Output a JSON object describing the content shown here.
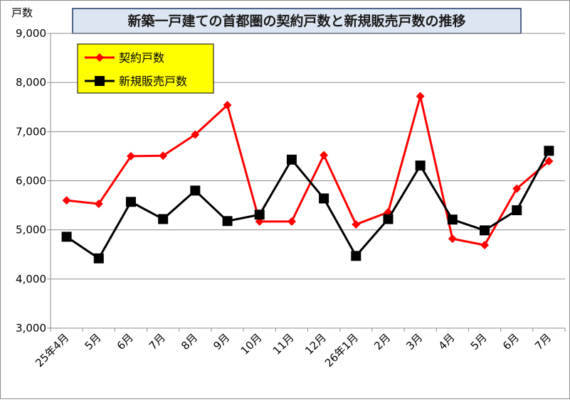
{
  "chart_data": {
    "type": "line",
    "title": "新築一戸建ての首都圏の契約戸数と新規販売戸数の推移",
    "ylabel": "戸数",
    "xlabel": "",
    "ylim": [
      3000,
      9000
    ],
    "yticks": [
      3000,
      4000,
      5000,
      6000,
      7000,
      8000,
      9000
    ],
    "ytick_labels": [
      "3,000",
      "4,000",
      "5,000",
      "6,000",
      "7,000",
      "8,000",
      "9,000"
    ],
    "categories": [
      "25年4月",
      "5月",
      "6月",
      "7月",
      "8月",
      "9月",
      "10月",
      "11月",
      "12月",
      "26年1月",
      "2月",
      "3月",
      "4月",
      "5月",
      "6月",
      "7月"
    ],
    "grid": "horizontal",
    "legend_position": "top-left",
    "series": [
      {
        "name": "契約戸数",
        "color": "#ff0000",
        "marker": "diamond",
        "values": [
          5600,
          5530,
          6500,
          6510,
          6940,
          7540,
          5170,
          5170,
          6520,
          5110,
          5360,
          7720,
          4820,
          4690,
          5840,
          6400
        ]
      },
      {
        "name": "新規販売戸数",
        "color": "#000000",
        "marker": "square",
        "values": [
          4860,
          4420,
          5570,
          5220,
          5800,
          5180,
          5310,
          6430,
          5640,
          4470,
          5220,
          6310,
          5210,
          4990,
          5400,
          6610
        ]
      }
    ]
  }
}
